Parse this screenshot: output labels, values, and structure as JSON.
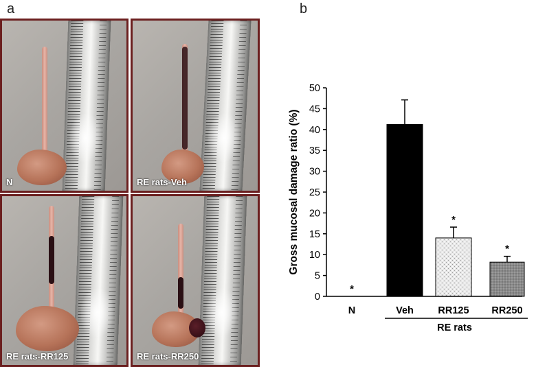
{
  "panels": {
    "a": "a",
    "b": "b"
  },
  "photos": [
    {
      "label": "N"
    },
    {
      "label": "RE rats-Veh"
    },
    {
      "label": "RE rats-RR125"
    },
    {
      "label": "RE rats-RR250"
    }
  ],
  "colors": {
    "photo_border": "#6b1f1f",
    "bar_veh": "#000000",
    "bar_rr125": "#ffffff",
    "bar_rr250": "#8a8a8a"
  },
  "chart_data": {
    "type": "bar",
    "ylabel": "Gross mucosal damage ratio (%)",
    "xlabel": "",
    "ylim": [
      0,
      50
    ],
    "yticks": [
      0,
      5,
      10,
      15,
      20,
      25,
      30,
      35,
      40,
      45,
      50
    ],
    "categories": [
      "N",
      "Veh",
      "RR125",
      "RR250"
    ],
    "values": [
      0,
      41.2,
      14.0,
      8.2
    ],
    "errors": [
      0,
      5.9,
      2.6,
      1.4
    ],
    "significance": [
      "*",
      "",
      "*",
      "*"
    ],
    "group_label": "RE rats",
    "group_members": [
      "Veh",
      "RR125",
      "RR250"
    ]
  }
}
